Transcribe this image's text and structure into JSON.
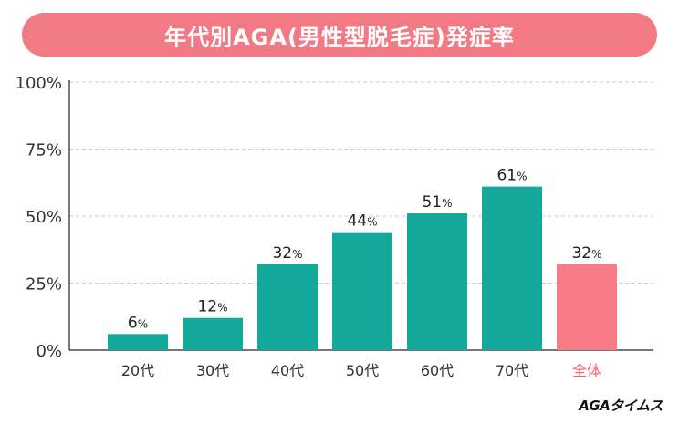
{
  "title": "年代別AGA(男性型脱毛症)発症率",
  "watermark": "AGAタイムス",
  "colors": {
    "title_bg": "#f27a85",
    "bar": "#12a89a",
    "bar_highlight": "#f77c88",
    "axis_text": "#333333",
    "highlight_text": "#f2606e",
    "grid": "#cccccc"
  },
  "chart_data": {
    "type": "bar",
    "title": "年代別AGA(男性型脱毛症)発症率",
    "categories": [
      "20代",
      "30代",
      "40代",
      "50代",
      "60代",
      "70代",
      "全体"
    ],
    "values": [
      6,
      12,
      32,
      44,
      51,
      61,
      32
    ],
    "value_suffix": "%",
    "highlight_index": 6,
    "ylim": [
      0,
      100
    ],
    "yticks": [
      "0%",
      "25%",
      "50%",
      "75%",
      "100%"
    ],
    "ytick_values": [
      0,
      25,
      50,
      75,
      100
    ],
    "xlabel": "",
    "ylabel": "",
    "grid": true
  }
}
